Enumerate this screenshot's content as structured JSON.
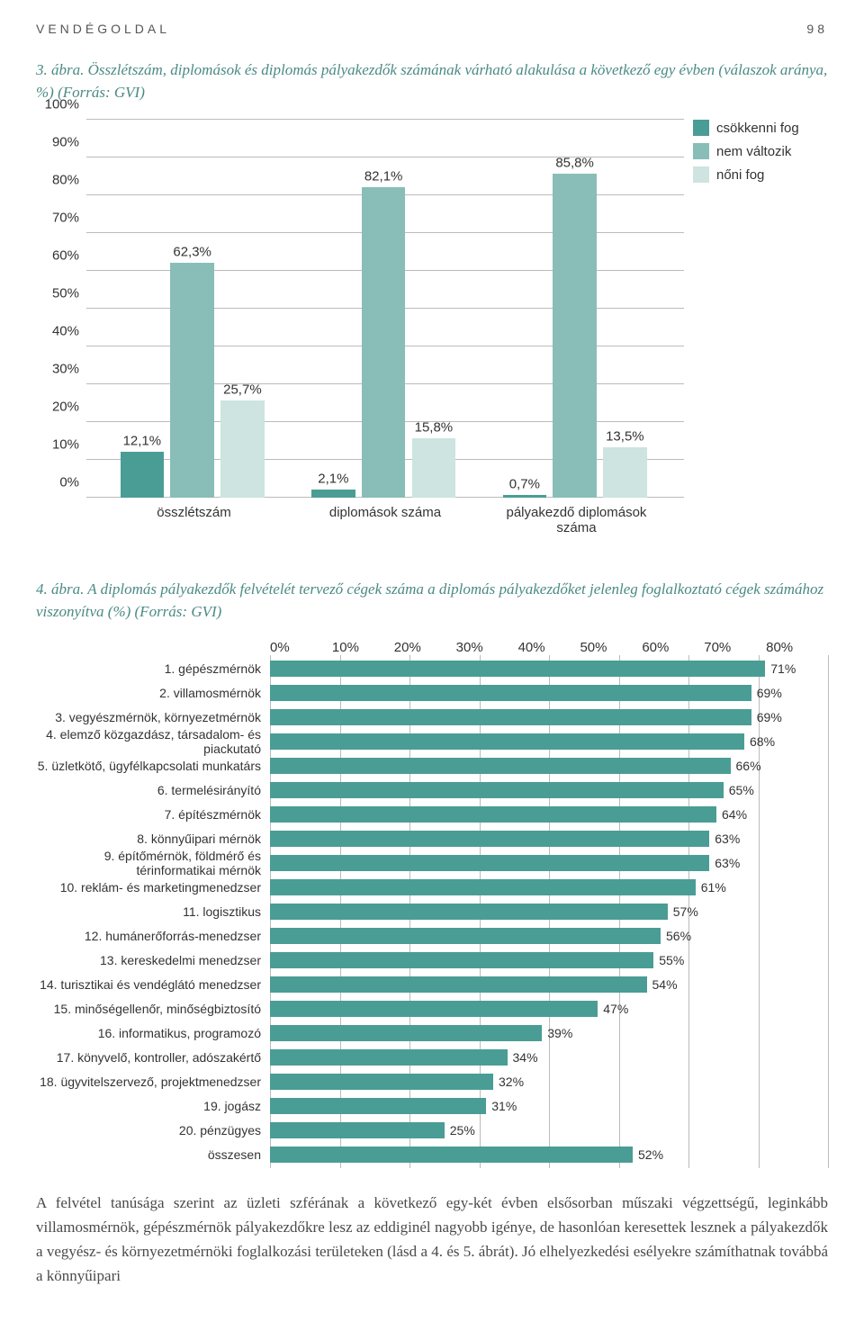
{
  "header": {
    "section": "VENDÉGOLDAL",
    "page": "98"
  },
  "caption1": "3. ábra. Összlétszám, diplomások és diplomás pályakezdők számának várható alakulása a következő egy évben (válaszok aránya, %) (Forrás: GVI)",
  "chart1": {
    "type": "bar",
    "ylim": [
      0,
      100
    ],
    "ytick_step": 10,
    "background_color": "#ffffff",
    "grid_color": "#bbbbbb",
    "label_fontsize": 15,
    "categories": [
      "összlétszám",
      "diplomások száma",
      "pályakezdő diplomások száma"
    ],
    "series": [
      {
        "name": "csökkenni fog",
        "color": "#4a9d94",
        "values": [
          12.1,
          2.1,
          0.7
        ]
      },
      {
        "name": "nem változik",
        "color": "#88beb7",
        "values": [
          62.3,
          82.1,
          85.8
        ]
      },
      {
        "name": "nőni fog",
        "color": "#cde4e0",
        "values": [
          25.7,
          15.8,
          13.5
        ]
      }
    ],
    "value_labels": [
      [
        "12,1%",
        "62,3%",
        "25,7%"
      ],
      [
        "2,1%",
        "82,1%",
        "15,8%"
      ],
      [
        "0,7%",
        "85,8%",
        "13,5%"
      ]
    ],
    "ytick_labels": [
      "0%",
      "10%",
      "20%",
      "30%",
      "40%",
      "50%",
      "60%",
      "70%",
      "80%",
      "90%",
      "100%"
    ]
  },
  "caption2": "4. ábra. A diplomás pályakezdők felvételét tervező cégek száma a diplomás pályakezdőket jelenleg foglalkoztató cégek számához viszonyítva (%) (Forrás: GVI)",
  "chart2": {
    "type": "bar-horizontal",
    "xlim": [
      0,
      80
    ],
    "xtick_step": 10,
    "xtick_labels": [
      "0%",
      "10%",
      "20%",
      "30%",
      "40%",
      "50%",
      "60%",
      "70%",
      "80%"
    ],
    "bar_color": "#4a9d94",
    "grid_color": "#bbbbbb",
    "label_fontsize": 14,
    "items": [
      {
        "label": "1. gépészmérnök",
        "value": 71,
        "vlabel": "71%"
      },
      {
        "label": "2. villamosmérnök",
        "value": 69,
        "vlabel": "69%"
      },
      {
        "label": "3. vegyészmérnök, környezetmérnök",
        "value": 69,
        "vlabel": "69%"
      },
      {
        "label": "4. elemző közgazdász, társadalom- és piackutató",
        "value": 68,
        "vlabel": "68%"
      },
      {
        "label": "5. üzletkötő, ügyfélkapcsolati munkatárs",
        "value": 66,
        "vlabel": "66%"
      },
      {
        "label": "6. termelésirányító",
        "value": 65,
        "vlabel": "65%"
      },
      {
        "label": "7. építészmérnök",
        "value": 64,
        "vlabel": "64%"
      },
      {
        "label": "8. könnyűipari mérnök",
        "value": 63,
        "vlabel": "63%"
      },
      {
        "label": "9. építőmérnök, földmérő és térinformatikai mérnök",
        "value": 63,
        "vlabel": "63%"
      },
      {
        "label": "10. reklám- és marketingmenedzser",
        "value": 61,
        "vlabel": "61%"
      },
      {
        "label": "11. logisztikus",
        "value": 57,
        "vlabel": "57%"
      },
      {
        "label": "12. humánerőforrás-menedzser",
        "value": 56,
        "vlabel": "56%"
      },
      {
        "label": "13. kereskedelmi menedzser",
        "value": 55,
        "vlabel": "55%"
      },
      {
        "label": "14. turisztikai és vendéglátó menedzser",
        "value": 54,
        "vlabel": "54%"
      },
      {
        "label": "15. minőségellenőr, minőségbiztosító",
        "value": 47,
        "vlabel": "47%"
      },
      {
        "label": "16. informatikus, programozó",
        "value": 39,
        "vlabel": "39%"
      },
      {
        "label": "17. könyvelő, kontroller, adószakértő",
        "value": 34,
        "vlabel": "34%"
      },
      {
        "label": "18. ügyvitelszervező, projektmenedzser",
        "value": 32,
        "vlabel": "32%"
      },
      {
        "label": "19. jogász",
        "value": 31,
        "vlabel": "31%"
      },
      {
        "label": "20. pénzügyes",
        "value": 25,
        "vlabel": "25%"
      }
    ],
    "total": {
      "label": "összesen",
      "value": 52,
      "vlabel": "52%"
    }
  },
  "body": "A felvétel tanúsága szerint az üzleti szférának a következő egy-két évben elsősorban műszaki végzettségű, leginkább villamosmérnök, gépészmérnök pályakezdőkre lesz az eddiginél nagyobb igénye, de hasonlóan keresettek lesznek a pályakezdők a vegyész- és környezetmérnöki foglalkozási területeken (lásd a 4. és 5. ábrát). Jó elhelyezkedési esélyekre számíthatnak továbbá a könnyűipari"
}
